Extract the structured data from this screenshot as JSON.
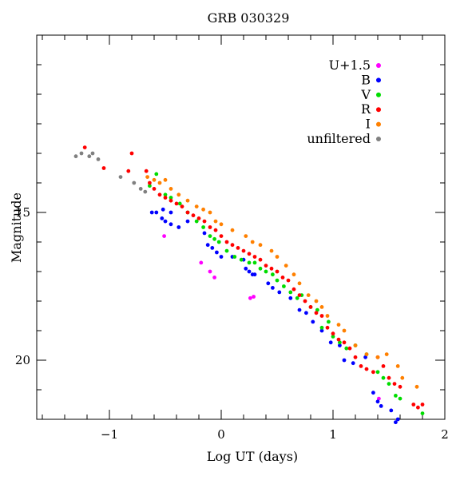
{
  "chart_data": {
    "type": "scatter",
    "title": "GRB 030329",
    "xlabel": "Log UT (days)",
    "ylabel": "Magnitude",
    "xlim": [
      -1.65,
      2.0
    ],
    "ylim": [
      22.0,
      9.0
    ],
    "y_inverted": true,
    "x_ticks": [
      -1,
      0,
      1,
      2
    ],
    "x_tick_labels": [
      "−1",
      "0",
      "1",
      "2"
    ],
    "y_ticks": [
      15,
      20
    ],
    "y_tick_labels": [
      "15",
      "20"
    ],
    "grid": false,
    "legend_position": "top-right",
    "series": [
      {
        "name": "U+1.5",
        "color": "#ff00ff",
        "points": [
          [
            -0.51,
            15.8
          ],
          [
            -0.18,
            16.7
          ],
          [
            -0.1,
            17.0
          ],
          [
            -0.06,
            17.2
          ],
          [
            0.26,
            17.9
          ],
          [
            0.29,
            17.85
          ],
          [
            1.41,
            21.3
          ]
        ]
      },
      {
        "name": "B",
        "color": "#0000ff",
        "points": [
          [
            -0.62,
            15.0
          ],
          [
            -0.58,
            15.0
          ],
          [
            -0.53,
            15.2
          ],
          [
            -0.5,
            15.3
          ],
          [
            -0.45,
            15.4
          ],
          [
            -0.38,
            15.5
          ],
          [
            -0.52,
            14.9
          ],
          [
            -0.45,
            15.0
          ],
          [
            -0.3,
            15.3
          ],
          [
            -0.15,
            15.7
          ],
          [
            -0.12,
            16.1
          ],
          [
            -0.08,
            16.2
          ],
          [
            -0.04,
            16.35
          ],
          [
            0.0,
            16.5
          ],
          [
            0.1,
            16.5
          ],
          [
            0.2,
            16.6
          ],
          [
            0.22,
            16.9
          ],
          [
            0.25,
            17.0
          ],
          [
            0.28,
            17.1
          ],
          [
            0.3,
            17.1
          ],
          [
            0.42,
            17.4
          ],
          [
            0.46,
            17.55
          ],
          [
            0.52,
            17.7
          ],
          [
            0.62,
            17.9
          ],
          [
            0.7,
            18.3
          ],
          [
            0.76,
            18.4
          ],
          [
            0.82,
            18.7
          ],
          [
            0.9,
            19.0
          ],
          [
            0.98,
            19.4
          ],
          [
            1.06,
            19.5
          ],
          [
            1.1,
            20.0
          ],
          [
            1.18,
            20.1
          ],
          [
            1.29,
            19.9
          ],
          [
            1.36,
            21.1
          ],
          [
            1.4,
            21.4
          ],
          [
            1.43,
            21.55
          ],
          [
            1.52,
            21.7
          ],
          [
            1.56,
            22.1
          ],
          [
            1.58,
            22.0
          ]
        ]
      },
      {
        "name": "V",
        "color": "#00dd00",
        "points": [
          [
            -0.64,
            14.1
          ],
          [
            -0.58,
            13.7
          ],
          [
            -0.5,
            14.4
          ],
          [
            -0.45,
            14.5
          ],
          [
            -0.37,
            14.7
          ],
          [
            -0.3,
            15.0
          ],
          [
            -0.22,
            15.3
          ],
          [
            -0.16,
            15.5
          ],
          [
            -0.1,
            15.8
          ],
          [
            -0.06,
            15.9
          ],
          [
            -0.02,
            16.0
          ],
          [
            0.05,
            16.3
          ],
          [
            0.12,
            16.5
          ],
          [
            0.18,
            16.6
          ],
          [
            0.25,
            16.7
          ],
          [
            0.3,
            16.7
          ],
          [
            0.35,
            16.9
          ],
          [
            0.4,
            17.0
          ],
          [
            0.46,
            17.1
          ],
          [
            0.5,
            17.3
          ],
          [
            0.56,
            17.5
          ],
          [
            0.62,
            17.7
          ],
          [
            0.68,
            17.9
          ],
          [
            0.72,
            17.8
          ],
          [
            0.8,
            18.2
          ],
          [
            0.86,
            18.3
          ],
          [
            0.9,
            18.9
          ],
          [
            0.96,
            18.7
          ],
          [
            1.0,
            19.2
          ],
          [
            1.06,
            19.4
          ],
          [
            1.12,
            19.6
          ],
          [
            1.2,
            19.5
          ],
          [
            1.3,
            19.8
          ],
          [
            1.4,
            20.4
          ],
          [
            1.45,
            20.6
          ],
          [
            1.5,
            20.8
          ],
          [
            1.56,
            21.2
          ],
          [
            1.6,
            21.3
          ],
          [
            1.8,
            21.8
          ]
        ]
      },
      {
        "name": "R",
        "color": "#ff0000",
        "points": [
          [
            -1.22,
            12.8
          ],
          [
            -1.05,
            13.5
          ],
          [
            -0.83,
            13.6
          ],
          [
            -0.8,
            13.0
          ],
          [
            -0.67,
            13.6
          ],
          [
            -0.64,
            14.0
          ],
          [
            -0.6,
            14.2
          ],
          [
            -0.55,
            14.4
          ],
          [
            -0.5,
            14.5
          ],
          [
            -0.45,
            14.6
          ],
          [
            -0.4,
            14.7
          ],
          [
            -0.35,
            14.8
          ],
          [
            -0.3,
            15.0
          ],
          [
            -0.25,
            15.1
          ],
          [
            -0.2,
            15.2
          ],
          [
            -0.15,
            15.3
          ],
          [
            -0.1,
            15.5
          ],
          [
            -0.05,
            15.6
          ],
          [
            0.0,
            15.8
          ],
          [
            0.05,
            16.0
          ],
          [
            0.1,
            16.1
          ],
          [
            0.15,
            16.2
          ],
          [
            0.2,
            16.3
          ],
          [
            0.25,
            16.4
          ],
          [
            0.3,
            16.5
          ],
          [
            0.35,
            16.6
          ],
          [
            0.4,
            16.8
          ],
          [
            0.45,
            16.9
          ],
          [
            0.5,
            17.0
          ],
          [
            0.55,
            17.2
          ],
          [
            0.6,
            17.3
          ],
          [
            0.65,
            17.6
          ],
          [
            0.7,
            17.8
          ],
          [
            0.75,
            18.0
          ],
          [
            0.8,
            18.2
          ],
          [
            0.85,
            18.4
          ],
          [
            0.9,
            18.5
          ],
          [
            0.95,
            18.9
          ],
          [
            1.0,
            19.1
          ],
          [
            1.05,
            19.3
          ],
          [
            1.1,
            19.4
          ],
          [
            1.15,
            19.6
          ],
          [
            1.2,
            19.9
          ],
          [
            1.25,
            20.2
          ],
          [
            1.3,
            20.3
          ],
          [
            1.36,
            20.4
          ],
          [
            1.4,
            19.9
          ],
          [
            1.45,
            20.2
          ],
          [
            1.5,
            20.6
          ],
          [
            1.55,
            20.8
          ],
          [
            1.6,
            20.9
          ],
          [
            1.72,
            21.5
          ],
          [
            1.76,
            21.6
          ],
          [
            1.8,
            21.5
          ]
        ]
      },
      {
        "name": "I",
        "color": "#ff8000",
        "points": [
          [
            -0.66,
            13.8
          ],
          [
            -0.6,
            13.9
          ],
          [
            -0.55,
            14.0
          ],
          [
            -0.5,
            13.9
          ],
          [
            -0.45,
            14.2
          ],
          [
            -0.38,
            14.4
          ],
          [
            -0.3,
            14.6
          ],
          [
            -0.22,
            14.8
          ],
          [
            -0.16,
            14.9
          ],
          [
            -0.1,
            15.0
          ],
          [
            -0.05,
            15.3
          ],
          [
            0.0,
            15.4
          ],
          [
            0.1,
            15.6
          ],
          [
            0.22,
            15.8
          ],
          [
            0.28,
            16.0
          ],
          [
            0.35,
            16.1
          ],
          [
            0.45,
            16.3
          ],
          [
            0.5,
            16.5
          ],
          [
            0.58,
            16.8
          ],
          [
            0.65,
            17.1
          ],
          [
            0.7,
            17.4
          ],
          [
            0.78,
            17.8
          ],
          [
            0.85,
            18.0
          ],
          [
            0.9,
            18.2
          ],
          [
            0.95,
            18.5
          ],
          [
            1.05,
            18.8
          ],
          [
            1.1,
            19.0
          ],
          [
            1.2,
            19.5
          ],
          [
            1.3,
            19.8
          ],
          [
            1.4,
            19.9
          ],
          [
            1.48,
            19.8
          ],
          [
            1.58,
            20.2
          ],
          [
            1.62,
            20.6
          ],
          [
            1.75,
            20.9
          ]
        ]
      },
      {
        "name": "unfiltered",
        "color": "#808080",
        "points": [
          [
            -1.3,
            13.1
          ],
          [
            -1.25,
            13.0
          ],
          [
            -1.18,
            13.1
          ],
          [
            -1.15,
            13.0
          ],
          [
            -1.1,
            13.2
          ],
          [
            -0.9,
            13.8
          ],
          [
            -0.78,
            14.0
          ],
          [
            -0.72,
            14.2
          ],
          [
            -0.68,
            14.3
          ]
        ]
      }
    ]
  }
}
